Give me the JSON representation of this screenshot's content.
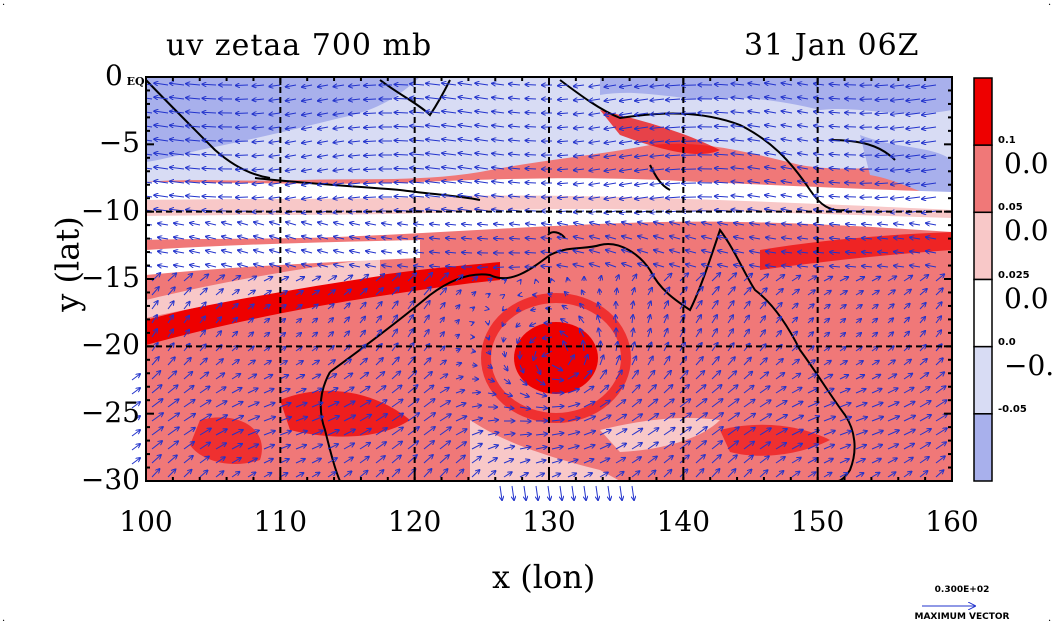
{
  "title": {
    "left": "uv zetaa 700 mb",
    "right": "31 Jan 06Z"
  },
  "axes": {
    "xlabel": "x (lon)",
    "ylabel": "y (lat)",
    "x_ticks": [
      "100",
      "110",
      "120",
      "130",
      "140",
      "150",
      "160"
    ],
    "y_ticks": [
      "0 EQ",
      "−5",
      "−10",
      "−15",
      "−20",
      "−25",
      "−30"
    ],
    "xlim": [
      100,
      160
    ],
    "ylim": [
      -30,
      0
    ]
  },
  "colorbar": {
    "small_labels": [
      "0.1",
      "0.05",
      "0.025",
      "0.0",
      "-0.05"
    ],
    "large_labels": [
      "0.0",
      "0.0",
      "0.0",
      "−0."
    ],
    "colors": [
      "#ee0000",
      "#f07878",
      "#f8c8c8",
      "#ffffff",
      "#d8dcf4",
      "#a8b0ec"
    ]
  },
  "max_vector": {
    "value": "0.300E+02",
    "label": "MAXIMUM VECTOR"
  },
  "colors": {
    "vector": "#2233cc",
    "grid": "#000000",
    "coast": "#000000"
  }
}
